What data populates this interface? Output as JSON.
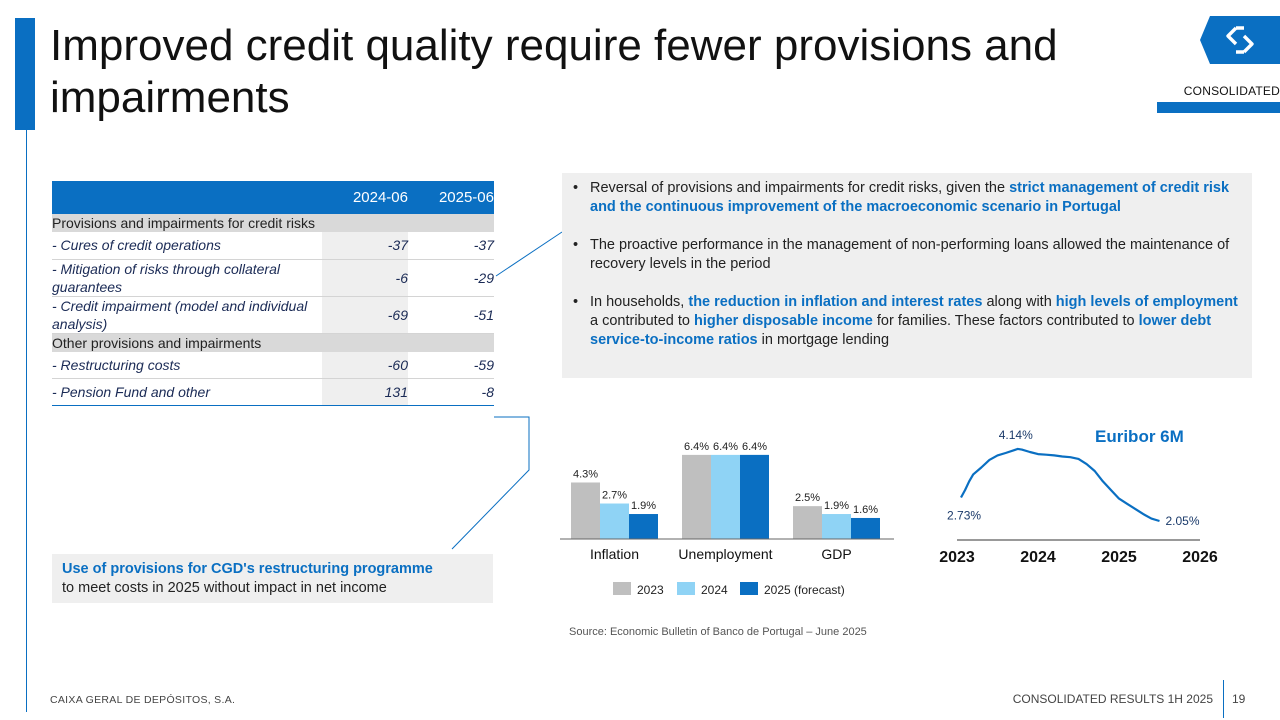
{
  "title": "Improved credit quality require fewer provisions and impairments",
  "badge": "CONSOLIDATED",
  "table": {
    "columns": [
      "2024-06",
      "2025-06"
    ],
    "sections": [
      {
        "label": "Provisions and impairments for credit risks",
        "rows": [
          {
            "label": "- Cures of credit operations",
            "values": [
              "-37",
              "-37"
            ]
          },
          {
            "label": "- Mitigation of risks through collateral guarantees",
            "values": [
              "-6",
              "-29"
            ]
          },
          {
            "label": "- Credit impairment (model and individual analysis)",
            "values": [
              "-69",
              "-51"
            ]
          }
        ]
      },
      {
        "label": "Other provisions and impairments",
        "rows": [
          {
            "label": "- Restructuring costs",
            "values": [
              "-60",
              "-59"
            ]
          },
          {
            "label": "- Pension Fund and other",
            "values": [
              "131",
              "-8"
            ]
          }
        ]
      }
    ]
  },
  "bullets": [
    {
      "a": "Reversal of provisions and impairments for credit risks, given the ",
      "b": "strict management of credit risk and the continuous improvement of the macroeconomic scenario in Portugal"
    },
    {
      "a": "The proactive performance in the management of non-performing loans allowed the maintenance of recovery levels in the period"
    },
    {
      "a": "In households, ",
      "b": "the reduction in inflation and interest rates",
      "c": " along with ",
      "d": "high levels of employment",
      "e": " a contributed to ",
      "f": "higher disposable income",
      "g": " for families. These factors contributed to ",
      "h": "lower debt service-to-income ratios",
      "i": " in mortgage lending"
    }
  ],
  "callout": {
    "highlight": "Use of provisions for CGD's restructuring programme",
    "text": "to meet costs in 2025 without impact in net income"
  },
  "source": "Source: Economic Bulletin of Banco de Portugal – June 2025",
  "footer": {
    "company": "CAIXA GERAL DE DEPÓSITOS, S.A.",
    "report": "CONSOLIDATED RESULTS 1H 2025",
    "page": "19"
  },
  "colors": {
    "accent": "#0a6fc2",
    "bar2023": "#bfbfbf",
    "bar2024": "#8fd3f5",
    "bar2025": "#0a6fc2"
  },
  "chart_data": [
    {
      "type": "bar",
      "categories": [
        "Inflation",
        "Unemployment",
        "GDP"
      ],
      "series": [
        {
          "name": "2023",
          "values": [
            4.3,
            6.4,
            2.5
          ],
          "labels": [
            "4.3%",
            "6.4%",
            "2.5%"
          ]
        },
        {
          "name": "2024",
          "values": [
            2.7,
            6.4,
            1.9
          ],
          "labels": [
            "2.7%",
            "6.4%",
            "1.9%"
          ]
        },
        {
          "name": "2025 (forecast)",
          "values": [
            1.9,
            6.4,
            1.6
          ],
          "labels": [
            "1.9%",
            "6.4%",
            "1.6%"
          ]
        }
      ],
      "ylim": [
        0,
        7
      ],
      "legend": "bottom"
    },
    {
      "type": "line",
      "title": "Euribor 6M",
      "x_ticks": [
        "2023",
        "2024",
        "2025",
        "2026"
      ],
      "xlim": [
        2023.0,
        2026.0
      ],
      "ylim": [
        1.5,
        4.6
      ],
      "x": [
        2023.05,
        2023.1,
        2023.15,
        2023.2,
        2023.3,
        2023.4,
        2023.5,
        2023.6,
        2023.7,
        2023.75,
        2023.8,
        2023.9,
        2024.0,
        2024.1,
        2024.2,
        2024.3,
        2024.4,
        2024.5,
        2024.6,
        2024.7,
        2024.8,
        2024.9,
        2025.0,
        2025.1,
        2025.2,
        2025.3,
        2025.4,
        2025.5
      ],
      "y": [
        2.73,
        2.95,
        3.2,
        3.4,
        3.6,
        3.82,
        3.95,
        4.02,
        4.1,
        4.14,
        4.12,
        4.05,
        3.99,
        3.97,
        3.95,
        3.92,
        3.9,
        3.85,
        3.7,
        3.5,
        3.2,
        2.95,
        2.7,
        2.55,
        2.4,
        2.25,
        2.12,
        2.05
      ],
      "annotations": [
        {
          "label": "2.73%",
          "x": 2023.05,
          "y": 2.73
        },
        {
          "label": "4.14%",
          "x": 2023.75,
          "y": 4.14
        },
        {
          "label": "2.05%",
          "x": 2025.5,
          "y": 2.05
        }
      ]
    }
  ]
}
